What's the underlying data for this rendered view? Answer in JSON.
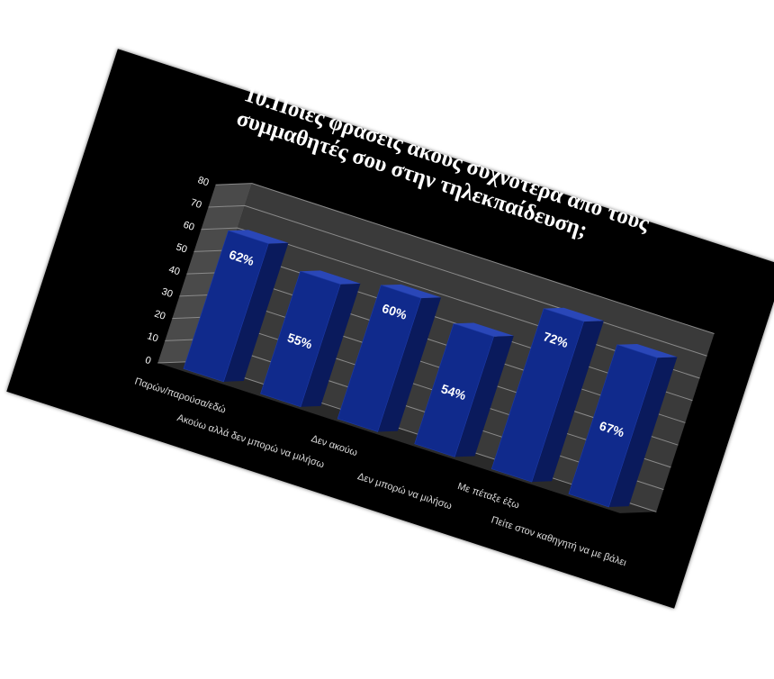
{
  "chart_data": {
    "type": "bar",
    "title_lines": [
      "10.Ποιες φράσεις ακούς συχνότερα από τους",
      "συμμαθητές σου στην τηλεκπαίδευση;"
    ],
    "categories": [
      "Παρών/παρούσα/εδώ",
      "Ακούω αλλά δεν μπορώ να μιλήσω",
      "Δεν ακούω",
      "Δεν μπορώ να μιλήσω",
      "Με πέταξε έξω",
      "Πείτε στον καθηγητή να με βάλει"
    ],
    "values": [
      62,
      55,
      60,
      54,
      72,
      67
    ],
    "data_labels": [
      "62%",
      "55%",
      "60%",
      "54%",
      "72%",
      "67%"
    ],
    "y_ticks": [
      "0",
      "10",
      "20",
      "30",
      "40",
      "50",
      "60",
      "70",
      "80"
    ],
    "ylim": [
      0,
      80
    ],
    "grid": true,
    "colors": {
      "bar_front": "#102a8c",
      "bar_side": "#0a1a5c",
      "bar_top": "#2a47b8",
      "background": "#000000",
      "wall": "#3a3a3a",
      "floor": "#2a2a2a",
      "text": "#ffffff"
    }
  }
}
